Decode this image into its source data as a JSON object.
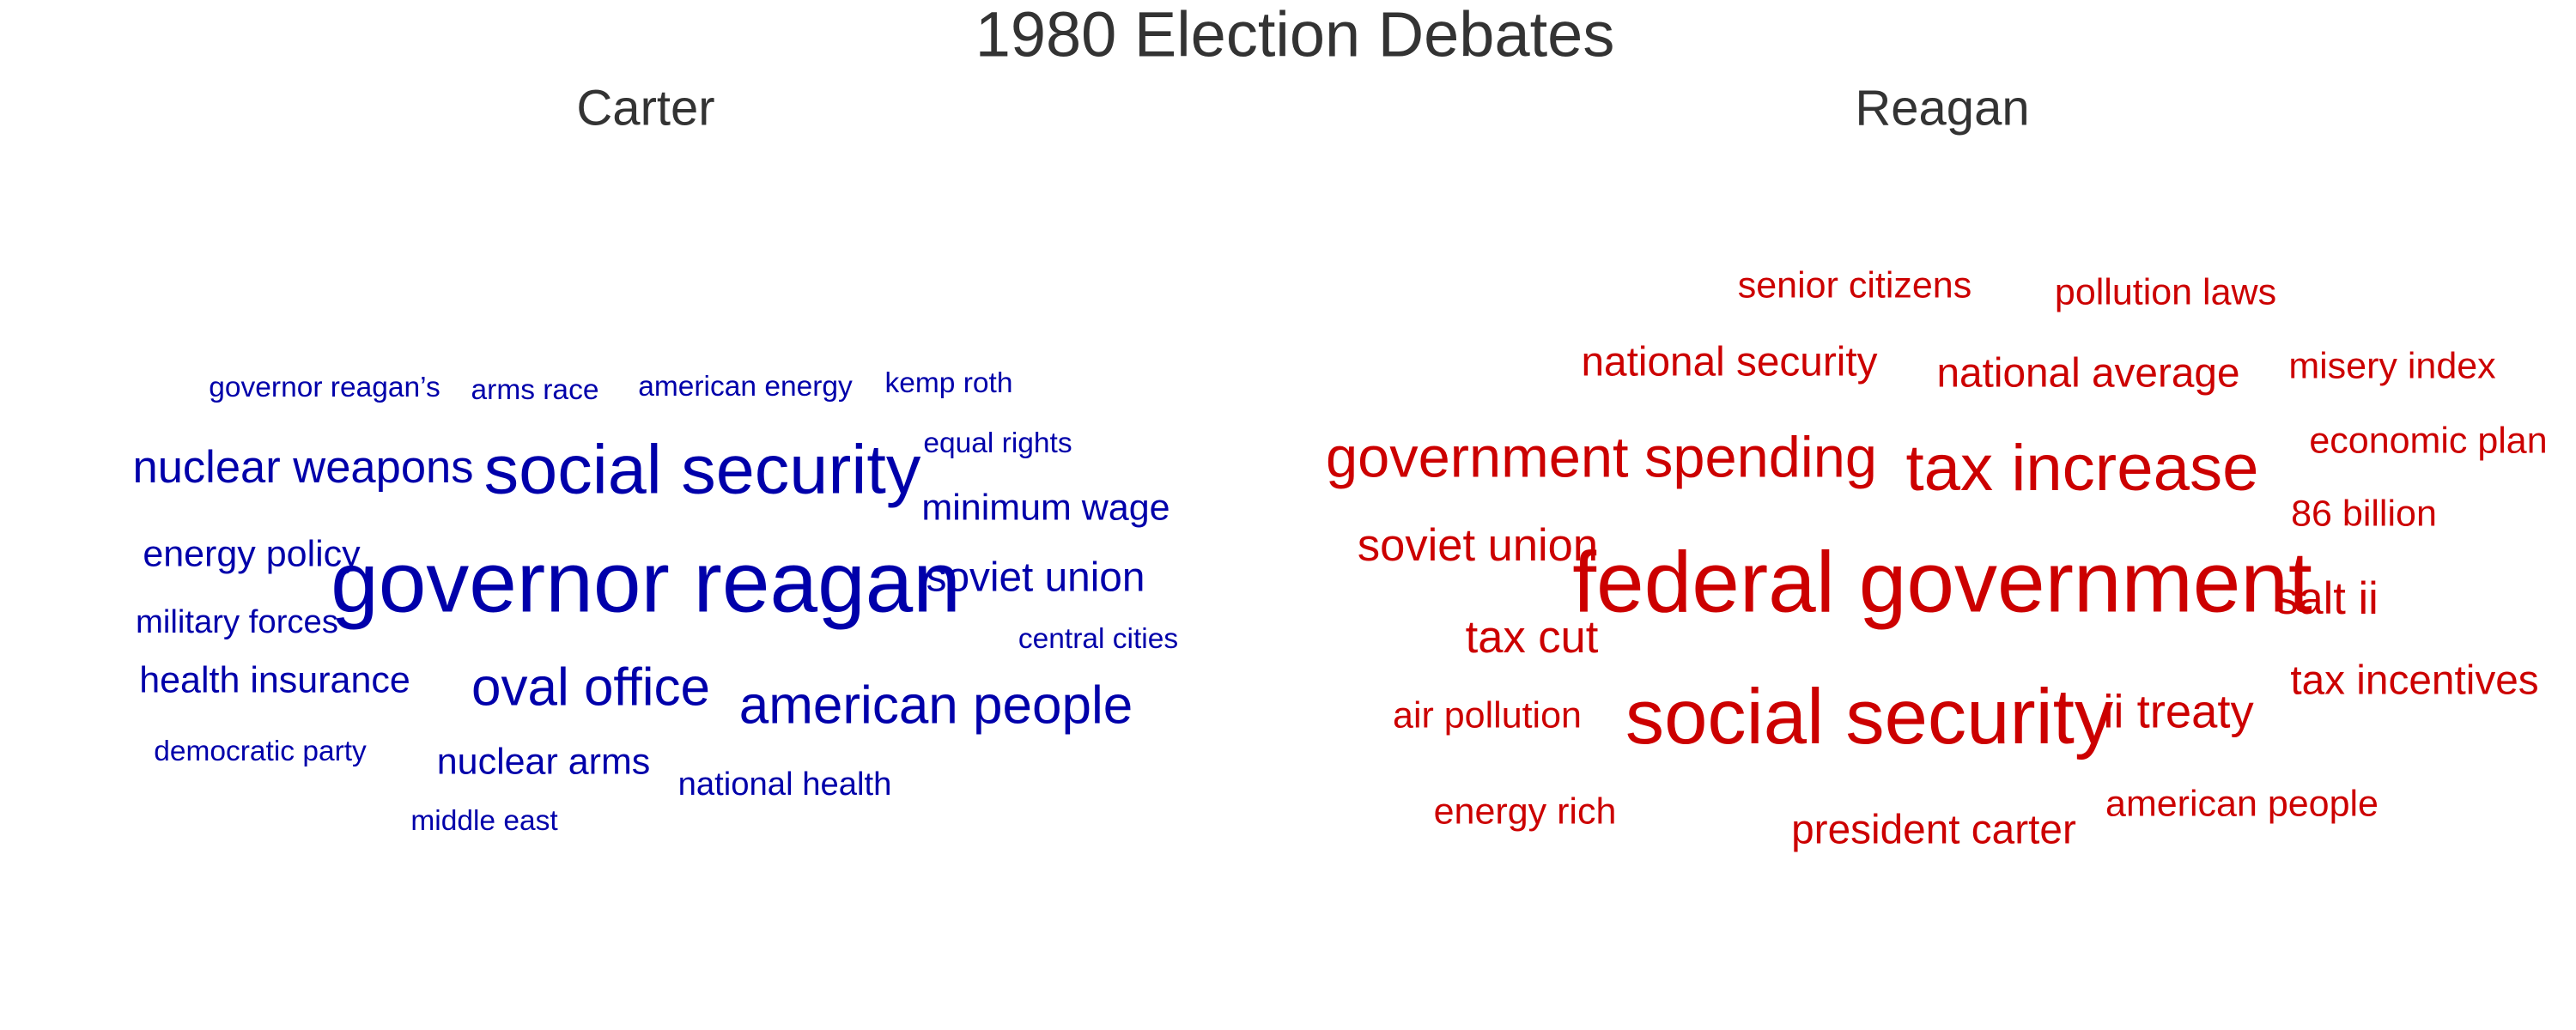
{
  "chart_data": {
    "type": "wordcloud",
    "title": "1980 Election Debates",
    "panels": [
      {
        "name": "Carter",
        "color": "#0000aa",
        "words": [
          {
            "text": "governor reagan’s",
            "weight": 1
          },
          {
            "text": "arms race",
            "weight": 1
          },
          {
            "text": "american energy",
            "weight": 1
          },
          {
            "text": "kemp roth",
            "weight": 1
          },
          {
            "text": "equal rights",
            "weight": 1
          },
          {
            "text": "nuclear weapons",
            "weight": 3
          },
          {
            "text": "social security",
            "weight": 6
          },
          {
            "text": "minimum wage",
            "weight": 2
          },
          {
            "text": "energy policy",
            "weight": 2
          },
          {
            "text": "governor reagan",
            "weight": 8
          },
          {
            "text": "soviet union",
            "weight": 2.5
          },
          {
            "text": "military forces",
            "weight": 1.5
          },
          {
            "text": "central cities",
            "weight": 1
          },
          {
            "text": "health insurance",
            "weight": 2
          },
          {
            "text": "oval office",
            "weight": 4
          },
          {
            "text": "american people",
            "weight": 4
          },
          {
            "text": "democratic party",
            "weight": 1
          },
          {
            "text": "nuclear arms",
            "weight": 2
          },
          {
            "text": "national health",
            "weight": 1.5
          },
          {
            "text": "middle east",
            "weight": 1
          }
        ]
      },
      {
        "name": "Reagan",
        "color": "#cc0000",
        "words": [
          {
            "text": "senior citizens",
            "weight": 2
          },
          {
            "text": "pollution laws",
            "weight": 2
          },
          {
            "text": "national security",
            "weight": 2.5
          },
          {
            "text": "national average",
            "weight": 2.5
          },
          {
            "text": "misery index",
            "weight": 2
          },
          {
            "text": "government spending",
            "weight": 4.5
          },
          {
            "text": "tax increase",
            "weight": 5.5
          },
          {
            "text": "economic plan",
            "weight": 2
          },
          {
            "text": "86 billion",
            "weight": 2
          },
          {
            "text": "soviet union",
            "weight": 3
          },
          {
            "text": "federal government",
            "weight": 8
          },
          {
            "text": "salt ii",
            "weight": 3
          },
          {
            "text": "tax cut",
            "weight": 3
          },
          {
            "text": "tax incentives",
            "weight": 2.5
          },
          {
            "text": "air pollution",
            "weight": 2
          },
          {
            "text": "social security",
            "weight": 7
          },
          {
            "text": "ii treaty",
            "weight": 3.2
          },
          {
            "text": "energy rich",
            "weight": 2
          },
          {
            "text": "president carter",
            "weight": 2.5
          },
          {
            "text": "american people",
            "weight": 2
          }
        ]
      }
    ]
  }
}
